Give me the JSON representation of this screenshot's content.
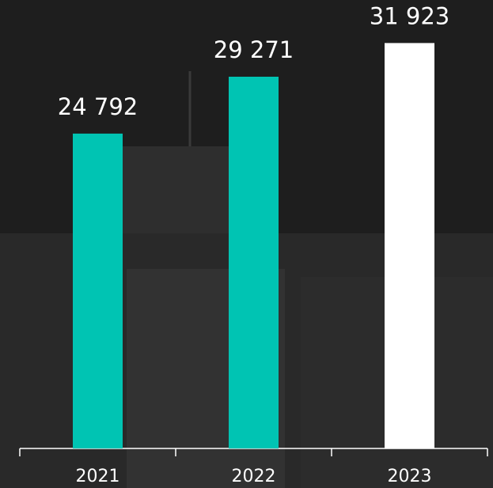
{
  "chart_data": {
    "type": "bar",
    "categories": [
      "2021",
      "2022",
      "2023"
    ],
    "values": [
      24792,
      29271,
      31923
    ],
    "value_labels": [
      "24 792",
      "29 271",
      "31 923"
    ],
    "colors": [
      "#00c4b3",
      "#00c4b3",
      "#ffffff"
    ],
    "ylim": [
      0,
      35000
    ]
  }
}
